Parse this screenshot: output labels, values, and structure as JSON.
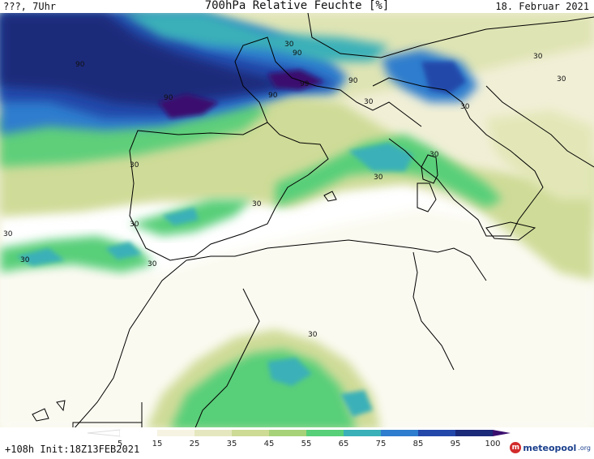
{
  "header": {
    "left_label": "???, 7Uhr",
    "title": "700hPa Relative Feuchte [%]",
    "date": "18. Februar 2021"
  },
  "map": {
    "contour_labels": [
      "90",
      "90",
      "90",
      "90",
      "90",
      "99",
      "30",
      "30",
      "30",
      "30",
      "30",
      "30",
      "30",
      "30",
      "30",
      "30",
      "30",
      "30",
      "30",
      "30"
    ]
  },
  "legend": {
    "ticks": [
      "5",
      "15",
      "25",
      "35",
      "45",
      "55",
      "65",
      "75",
      "85",
      "95",
      "100"
    ],
    "colors": [
      "#ffffff",
      "#f6f3e2",
      "#e5e8bf",
      "#cddb95",
      "#a7d27a",
      "#58cf79",
      "#3ab0b8",
      "#2f7dce",
      "#2448aa",
      "#1c2a7a",
      "#3a0e6e"
    ]
  },
  "footer": {
    "run_info": "+108h Init:18Z13FEB2021",
    "brand_name": "meteopool",
    "brand_suffix": ".org"
  }
}
